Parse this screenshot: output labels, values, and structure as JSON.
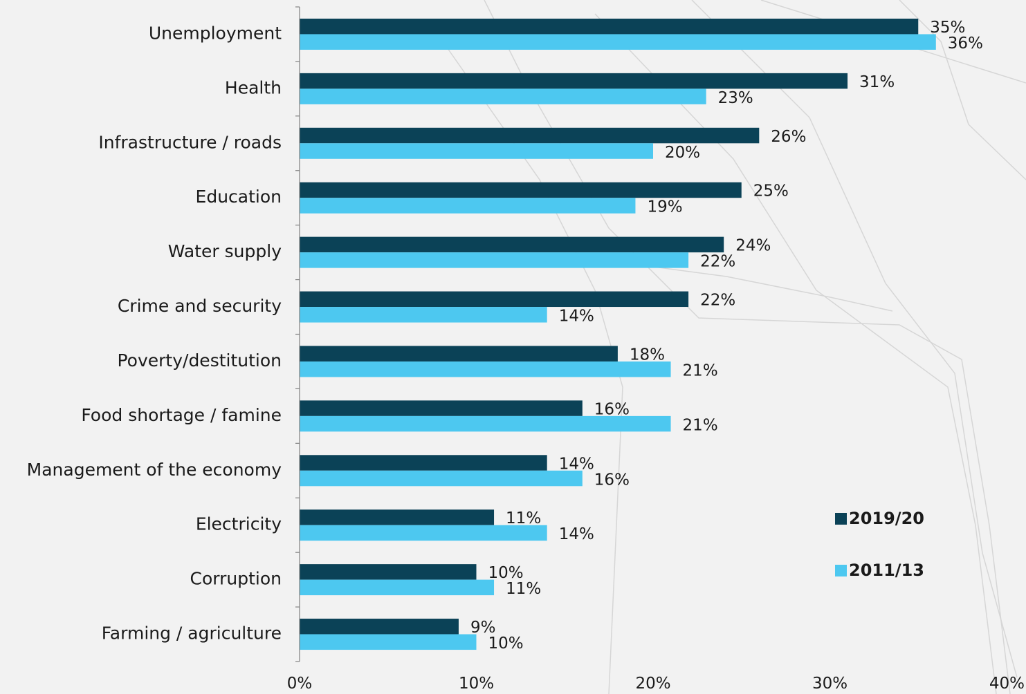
{
  "chart_data": {
    "type": "bar",
    "orientation": "horizontal",
    "categories": [
      "Unemployment",
      "Health",
      "Infrastructure / roads",
      "Education",
      "Water supply",
      "Crime and security",
      "Poverty/destitution",
      "Food shortage / famine",
      "Management of the economy",
      "Electricity",
      "Corruption",
      "Farming / agriculture"
    ],
    "series": [
      {
        "name": "2019/20",
        "color": "#0b4257",
        "values": [
          35,
          31,
          26,
          25,
          24,
          22,
          18,
          16,
          14,
          11,
          10,
          9
        ]
      },
      {
        "name": "2011/13",
        "color": "#4dc8f0",
        "values": [
          36,
          23,
          20,
          19,
          22,
          14,
          21,
          21,
          16,
          14,
          11,
          10
        ]
      }
    ],
    "data_labels": [
      [
        "35%",
        "31%",
        "26%",
        "25%",
        "24%",
        "22%",
        "18%",
        "16%",
        "14%",
        "11%",
        "10%",
        "9%"
      ],
      [
        "36%",
        "23%",
        "20%",
        "19%",
        "22%",
        "14%",
        "21%",
        "21%",
        "16%",
        "14%",
        "11%",
        "10%"
      ]
    ],
    "xlim": [
      0,
      40
    ],
    "x_ticks": [
      {
        "value": 0,
        "label": "0%"
      },
      {
        "value": 10,
        "label": "10%"
      },
      {
        "value": 20,
        "label": "20%"
      },
      {
        "value": 30,
        "label": "30%"
      },
      {
        "value": 40,
        "label": "40%"
      }
    ],
    "grid": false,
    "legend_position": "right"
  }
}
